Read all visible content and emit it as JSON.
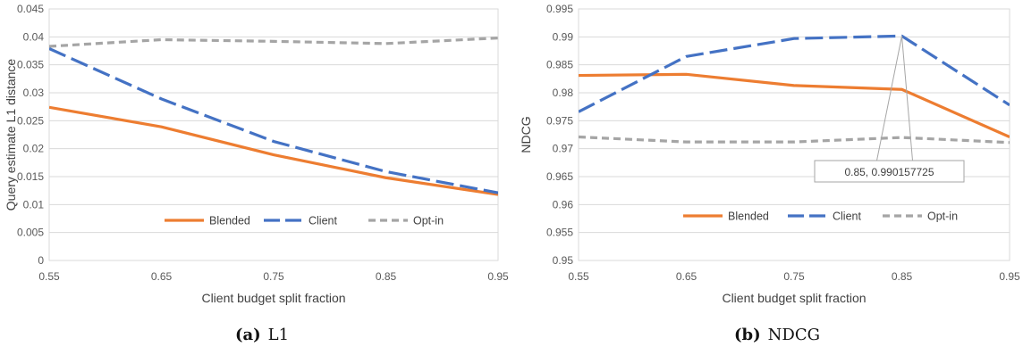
{
  "chart_data": [
    {
      "type": "line",
      "x": [
        0.55,
        0.65,
        0.75,
        0.85,
        0.95
      ],
      "xticks": [
        "0.55",
        "0.65",
        "0.75",
        "0.85",
        "0.95"
      ],
      "yticks": [
        "0",
        "0.005",
        "0.01",
        "0.015",
        "0.02",
        "0.025",
        "0.03",
        "0.035",
        "0.04",
        "0.045"
      ],
      "xlim": [
        0.55,
        0.95
      ],
      "ylim": [
        0,
        0.045
      ],
      "xlabel": "Client budget split fraction",
      "ylabel": "Query estimate L1 distance",
      "grid": true,
      "legend_position": "inside-bottom",
      "series": [
        {
          "name": "Blended",
          "values": [
            0.0274,
            0.0239,
            0.0189,
            0.0148,
            0.0118
          ],
          "color": "#ED7D31",
          "style": "solid"
        },
        {
          "name": "Client",
          "values": [
            0.0379,
            0.0289,
            0.0213,
            0.0159,
            0.0121
          ],
          "color": "#4472C4",
          "style": "long-dash"
        },
        {
          "name": "Opt-in",
          "values": [
            0.0383,
            0.0395,
            0.0392,
            0.0388,
            0.0398
          ],
          "color": "#A5A5A5",
          "style": "dash"
        }
      ],
      "caption": {
        "label": "(a)",
        "title": "L1"
      }
    },
    {
      "type": "line",
      "x": [
        0.55,
        0.65,
        0.75,
        0.85,
        0.95
      ],
      "xticks": [
        "0.55",
        "0.65",
        "0.75",
        "0.85",
        "0.95"
      ],
      "yticks": [
        "0.95",
        "0.955",
        "0.96",
        "0.965",
        "0.97",
        "0.975",
        "0.98",
        "0.985",
        "0.99",
        "0.995"
      ],
      "xlim": [
        0.55,
        0.95
      ],
      "ylim": [
        0.95,
        0.995
      ],
      "xlabel": "Client budget split fraction",
      "ylabel": "NDCG",
      "grid": true,
      "legend_position": "inside-bottom",
      "series": [
        {
          "name": "Blended",
          "values": [
            0.9831,
            0.9833,
            0.9813,
            0.9806,
            0.9721
          ],
          "color": "#ED7D31",
          "style": "solid"
        },
        {
          "name": "Client",
          "values": [
            0.9766,
            0.9865,
            0.9897,
            0.990157725,
            0.9778
          ],
          "color": "#4472C4",
          "style": "long-dash"
        },
        {
          "name": "Opt-in",
          "values": [
            0.9721,
            0.9712,
            0.9712,
            0.972,
            0.9711
          ],
          "color": "#A5A5A5",
          "style": "dash"
        }
      ],
      "annotation": {
        "text": "0.85, 0.990157725",
        "series": "Client",
        "x": 0.85,
        "y": 0.990157725
      },
      "caption": {
        "label": "(b)",
        "title": "NDCG"
      }
    }
  ]
}
